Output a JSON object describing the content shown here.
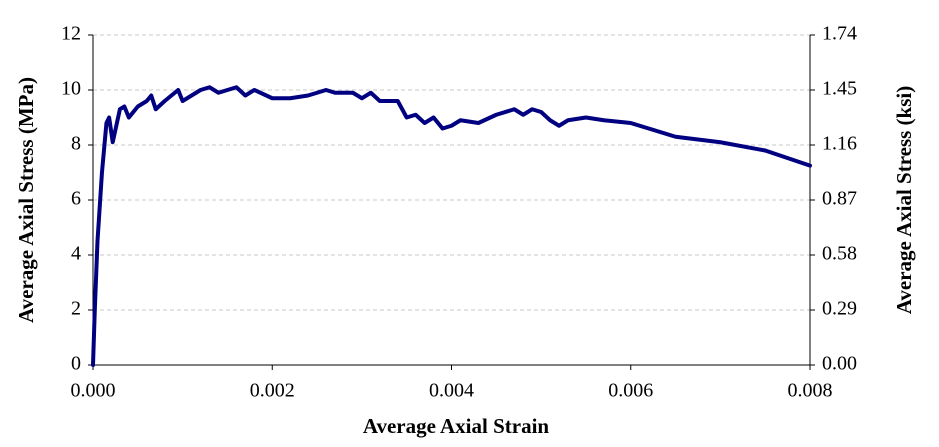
{
  "chart_data": {
    "type": "line",
    "xlabel": "Average Axial Strain",
    "ylabel": "Average Axial Stress (MPa)",
    "y2label": "Average Axial Stress (ksi)",
    "color": "#000080",
    "grid": true,
    "x": [
      0,
      2e-05,
      5e-05,
      0.0001,
      0.00015,
      0.00018,
      0.00022,
      0.0003,
      0.00035,
      0.0004,
      0.0005,
      0.0006,
      0.00065,
      0.0007,
      0.0008,
      0.00095,
      0.001,
      0.0012,
      0.0013,
      0.0014,
      0.0016,
      0.0017,
      0.0018,
      0.002,
      0.0022,
      0.0024,
      0.0026,
      0.0027,
      0.0029,
      0.003,
      0.0031,
      0.0032,
      0.0034,
      0.0035,
      0.0036,
      0.0037,
      0.0038,
      0.0039,
      0.004,
      0.0041,
      0.0043,
      0.0045,
      0.0047,
      0.0048,
      0.0049,
      0.005,
      0.0051,
      0.0052,
      0.0053,
      0.0055,
      0.0057,
      0.006,
      0.0062,
      0.0065,
      0.007,
      0.0075,
      0.008
    ],
    "values": [
      0,
      2,
      4.5,
      7,
      8.8,
      9.0,
      8.1,
      9.3,
      9.4,
      9.0,
      9.4,
      9.6,
      9.8,
      9.3,
      9.6,
      10.0,
      9.6,
      10.0,
      10.1,
      9.9,
      10.1,
      9.8,
      10.0,
      9.7,
      9.7,
      9.8,
      10.0,
      9.9,
      9.9,
      9.7,
      9.9,
      9.6,
      9.6,
      9.0,
      9.1,
      8.8,
      9.0,
      8.6,
      8.7,
      8.9,
      8.8,
      9.1,
      9.3,
      9.1,
      9.3,
      9.2,
      8.9,
      8.7,
      8.9,
      9.0,
      8.9,
      8.8,
      8.6,
      8.3,
      8.1,
      7.8,
      7.25
    ],
    "xlim": [
      0,
      0.008
    ],
    "xticks": [
      {
        "value": 0,
        "label": "0.000"
      },
      0.002,
      0.004,
      0.006,
      0.008
    ],
    "ylim": [
      0,
      12
    ],
    "yticks": [
      0,
      2,
      4,
      6,
      8,
      10,
      12
    ],
    "y2lim": [
      0,
      1.74
    ],
    "y2ticks": [
      {
        "value": 0,
        "label": "0.00"
      },
      0.29,
      0.58,
      0.87,
      1.16,
      1.45,
      1.74
    ]
  }
}
